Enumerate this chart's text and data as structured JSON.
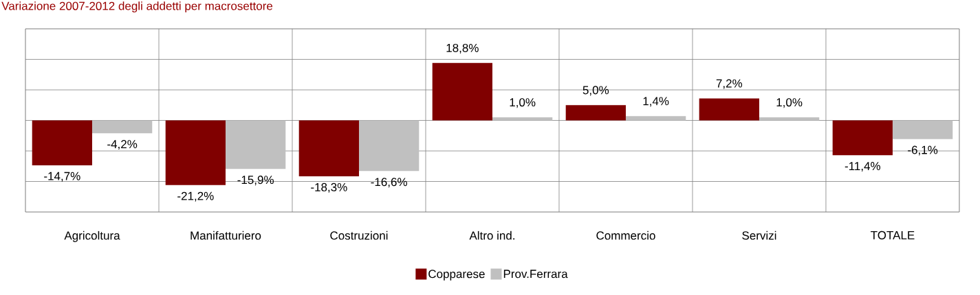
{
  "chart_data": {
    "type": "bar",
    "title": "Variazione 2007-2012 degli addetti per macrosettore",
    "categories": [
      "Agricoltura",
      "Manifatturiero",
      "Costruzioni",
      "Altro ind.",
      "Commercio",
      "Servizi",
      "TOTALE"
    ],
    "series": [
      {
        "name": "Copparese",
        "color": "#800000",
        "values": [
          -14.7,
          -21.2,
          -18.3,
          18.8,
          5.0,
          7.2,
          -11.4
        ],
        "value_labels": [
          "-14,7%",
          "-21,2%",
          "-18,3%",
          "18,8%",
          "5,0%",
          "7,2%",
          "-11,4%"
        ]
      },
      {
        "name": "Prov.Ferrara",
        "color": "#c0c0c0",
        "values": [
          -4.2,
          -15.9,
          -16.6,
          1.0,
          1.4,
          1.0,
          -6.1
        ],
        "value_labels": [
          "-4,2%",
          "-15,9%",
          "-16,6%",
          "1,0%",
          "1,4%",
          "1,0%",
          "-6,1%"
        ]
      }
    ],
    "ylim": [
      -30,
      30
    ],
    "yticks": [
      {
        "value": -30,
        "label": null
      },
      {
        "value": -20,
        "label": null
      },
      {
        "value": -10,
        "label": null
      },
      {
        "value": 0,
        "label": null
      },
      {
        "value": 10,
        "label": null
      },
      {
        "value": 20,
        "label": null
      },
      {
        "value": 30,
        "label": null
      }
    ],
    "grid": true,
    "legend": "bottom"
  }
}
